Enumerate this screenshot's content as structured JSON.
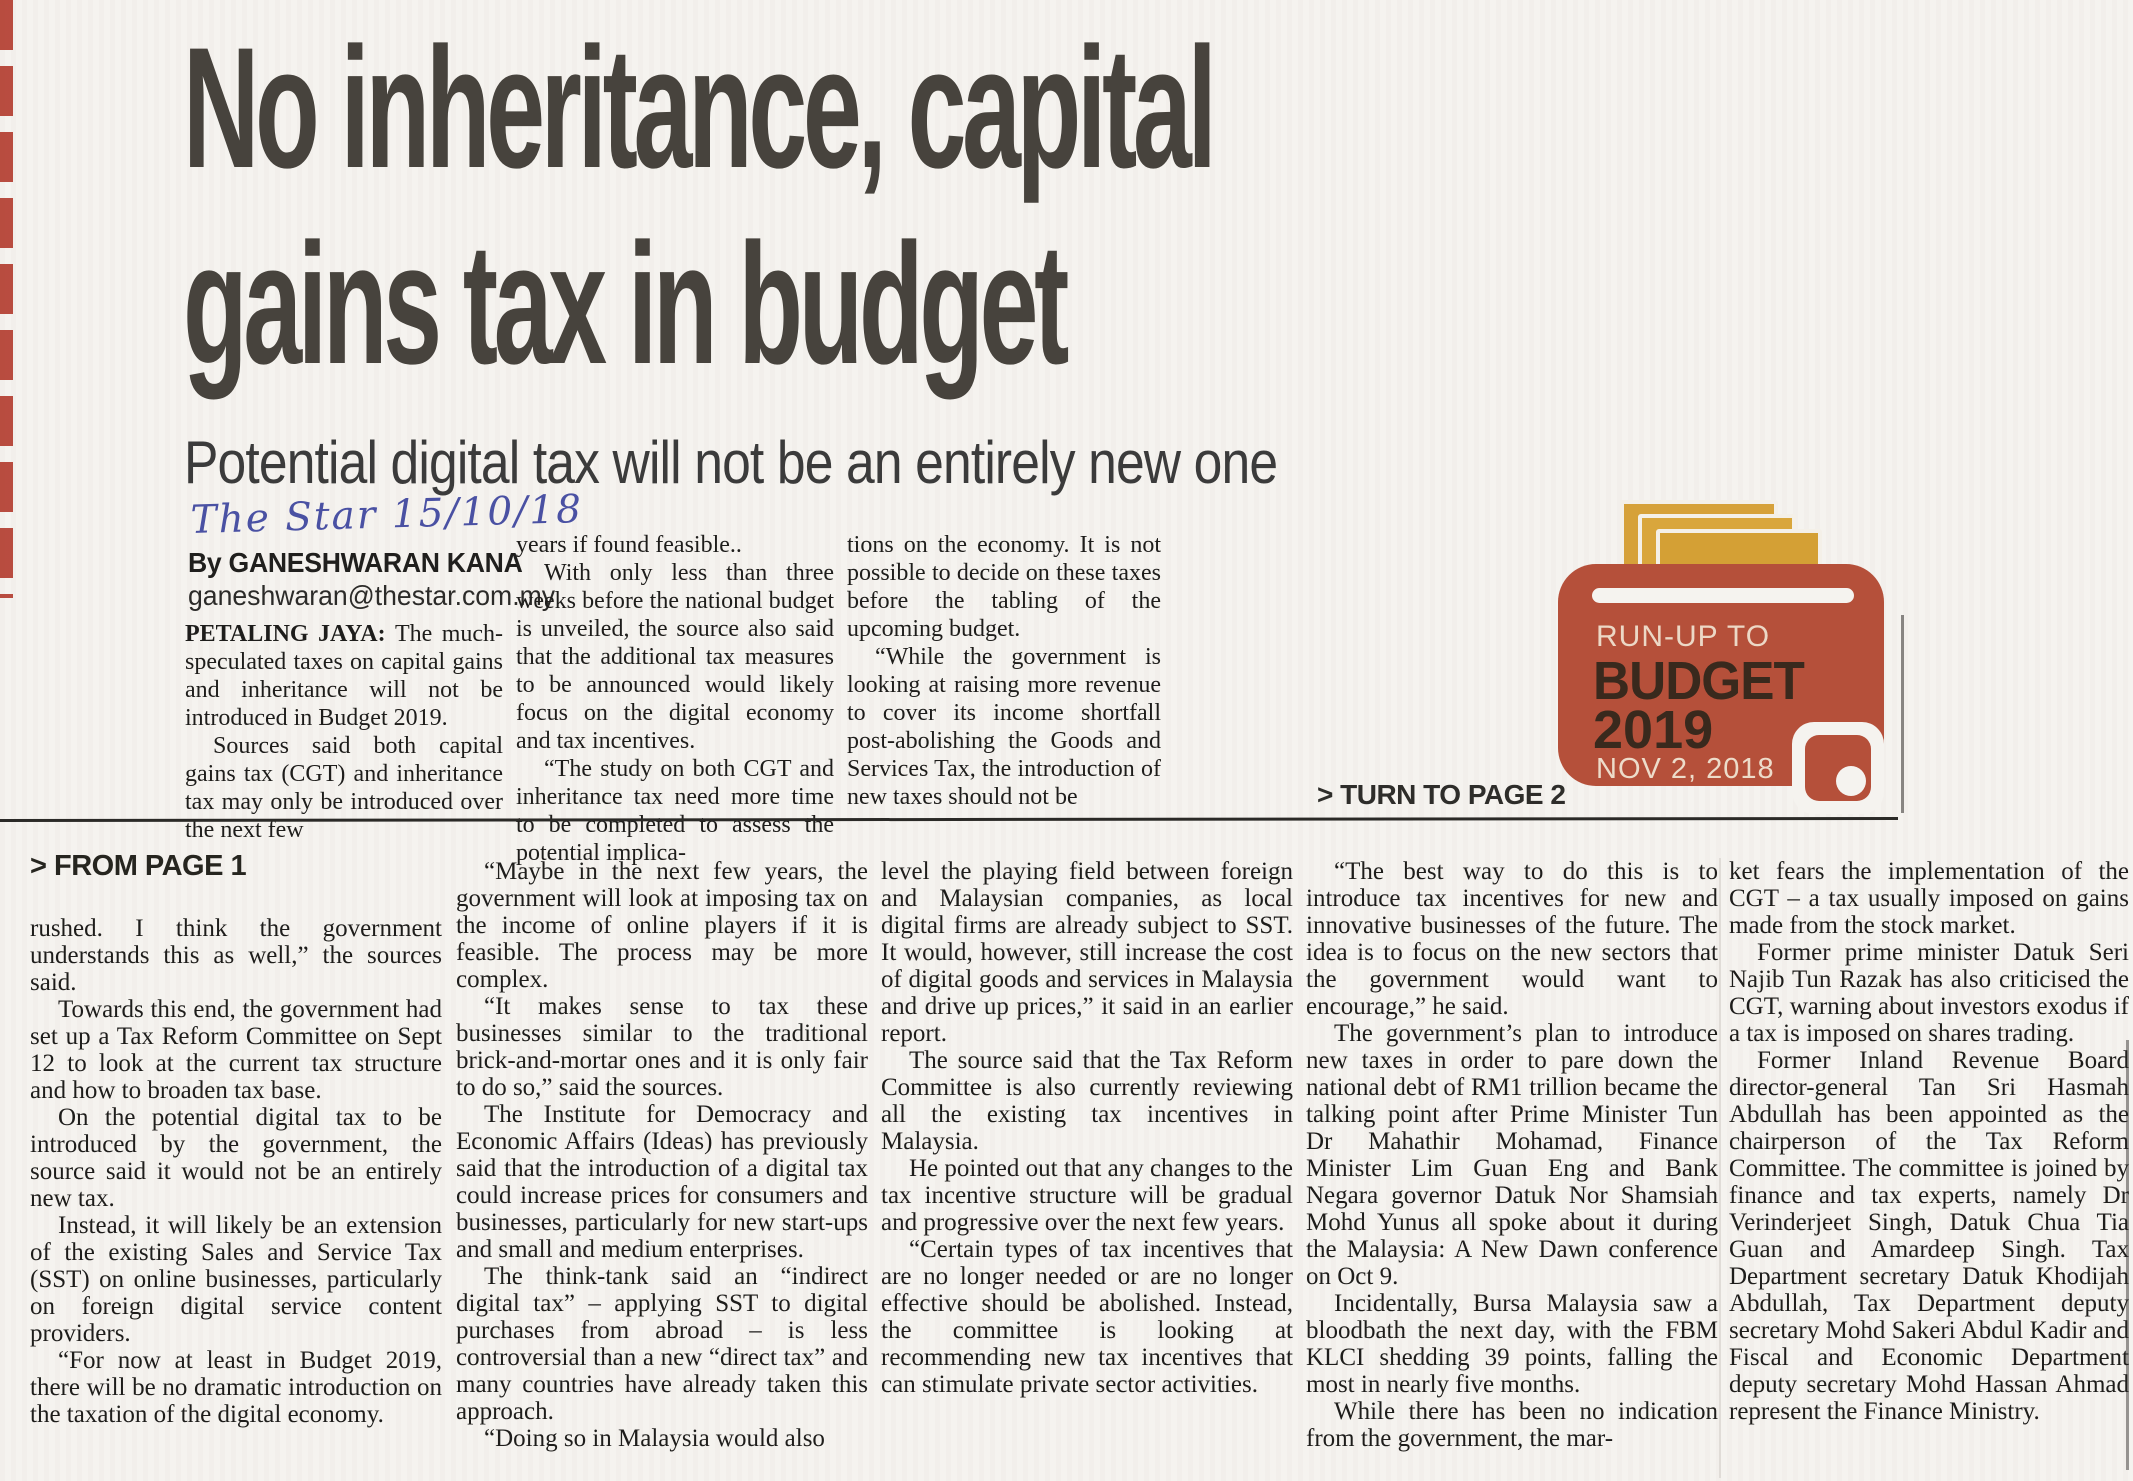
{
  "page": {
    "handwritten_note": "The Star 15/10/18",
    "headline_line1": "No inheritance, capital",
    "headline_line2": "gains tax in budget",
    "subheadline": "Potential digital tax will not be an entirely new one",
    "byline": "By GANESHWARAN KANA",
    "byline_email": "ganeshwaran@thestar.com.my",
    "turn_to_page": "> TURN TO PAGE 2",
    "from_page": "> FROM PAGE 1"
  },
  "colors": {
    "badge_red": "#b5503a",
    "badge_gold": "#d6a139",
    "badge_text_dark": "#39291d",
    "badge_text_light": "#ecd8c6",
    "handwriting_ink": "#4a51a3",
    "edge_mark_red": "#b23a2c",
    "headline_ink": "#47433d",
    "body_ink": "#1e1d1b"
  },
  "budget_badge": {
    "runup": "RUN-UP TO",
    "title": "BUDGET",
    "year": "2019",
    "date": "NOV 2, 2018"
  },
  "top_section": {
    "column1": [
      {
        "lead": "PETALING JAYA:",
        "text": "The much-speculated taxes on capital gains and inheritance will not be introduced in Budget 2019.",
        "indent": false
      },
      {
        "text": "Sources said both capital gains tax (CGT) and inheritance tax may only be introduced over the next few",
        "indent": true
      }
    ],
    "column2": [
      {
        "text": "years if found feasible..",
        "indent": false
      },
      {
        "text": "With only less than three weeks before the national budget is unveiled, the source also said that the additional tax measures to be announced would likely focus on the digital economy and tax incentives.",
        "indent": true
      },
      {
        "text": "“The study on both CGT and inheritance tax need more time to be completed to assess the potential implica-",
        "indent": true
      }
    ],
    "column3": [
      {
        "text": "tions on the economy. It is not possible to decide on these taxes before the tabling of the upcoming budget.",
        "indent": false
      },
      {
        "text": "“While the government is looking at raising more revenue to cover its income shortfall post-abolishing the Goods and Services Tax, the introduction of new taxes should not be",
        "indent": true
      }
    ]
  },
  "bottom_section": {
    "column1": [
      {
        "text": "rushed. I think the government understands this as well,” the sources said.",
        "indent": false
      },
      {
        "text": "Towards this end, the government had set up a Tax Reform Committee on Sept 12 to look at the current tax structure and how to broaden tax base.",
        "indent": true
      },
      {
        "text": "On the potential digital tax to be introduced by the government, the source said it would not be an entirely new tax.",
        "indent": true
      },
      {
        "text": "Instead, it will likely be an extension of the existing Sales and Service Tax (SST) on online businesses, particularly on foreign digital service content providers.",
        "indent": true
      },
      {
        "text": "“For now at least in Budget 2019, there will be no dramatic introduction on the taxation of the digital economy.",
        "indent": true
      }
    ],
    "column2": [
      {
        "text": "“Maybe in the next few years, the government will look at imposing tax on the income of online players if it is feasible. The process may be more complex.",
        "indent": true
      },
      {
        "text": "“It makes sense to tax these businesses similar to the traditional brick-and-mortar ones and it is only fair to do so,” said the sources.",
        "indent": true
      },
      {
        "text": "The Institute for Democracy and Economic Affairs (Ideas) has previously said that the introduction of a digital tax could increase prices for consumers and businesses, particularly for new start-ups and small and medium enterprises.",
        "indent": true
      },
      {
        "text": "The think-tank said an “indirect digital tax” – applying SST to digital purchases from abroad – is less controversial than a new “direct tax” and many countries have already taken this approach.",
        "indent": true
      },
      {
        "text": "“Doing so in Malaysia would also",
        "indent": true
      }
    ],
    "column3": [
      {
        "text": "level the playing field between foreign and Malaysian companies, as local digital firms are already subject to SST. It would, however, still increase the cost of digital goods and services in Malaysia and drive up prices,” it said in an earlier report.",
        "indent": false
      },
      {
        "text": "The source said that the Tax Reform Committee is also currently reviewing all the existing tax incentives in Malaysia.",
        "indent": true
      },
      {
        "text": "He pointed out that any changes to the tax incentive structure will be gradual and progressive over the next few years.",
        "indent": true
      },
      {
        "text": "“Certain types of tax incentives that are no longer needed or are no longer effective should be abolished. Instead, the committee is looking at recommending new tax incentives that can stimulate private sector activities.",
        "indent": true
      }
    ],
    "column4": [
      {
        "text": "“The best way to do this is to introduce tax incentives for new and innovative businesses of the future. The idea is to focus on the new sectors that the government would want to encourage,” he said.",
        "indent": true
      },
      {
        "text": "The government’s plan to introduce new taxes in order to pare down the national debt of RM1 trillion became the talking point after Prime Minister Tun Dr Mahathir Mohamad, Finance Minister Lim Guan Eng and Bank Negara governor Datuk Nor Shamsiah Mohd Yunus all spoke about it during the Malaysia: A New Dawn conference on Oct 9.",
        "indent": true
      },
      {
        "text": "Incidentally, Bursa Malaysia saw a bloodbath the next day, with the FBM KLCI shedding 39 points, falling the most in nearly five months.",
        "indent": true
      },
      {
        "text": "While there has been no indication from the government, the mar-",
        "indent": true
      }
    ],
    "column5": [
      {
        "text": "ket fears the implementation of the CGT – a tax usually imposed on gains made from the stock market.",
        "indent": false
      },
      {
        "text": "Former prime minister Datuk Seri Najib Tun Razak has also criticised the CGT, warning about investors exodus if a tax is imposed on shares trading.",
        "indent": true
      },
      {
        "text": "Former Inland Revenue Board director-general Tan Sri Hasmah Abdullah has been appointed as the chairperson of the Tax Reform Committee. The committee is joined by finance and tax experts, namely Dr Verinderjeet Singh, Datuk Chua Tia Guan and Amardeep Singh. Tax Department secretary Datuk Khodijah Abdullah, Tax Department deputy secretary Mohd Sakeri Abdul Kadir and Fiscal and Economic Department deputy secretary Mohd Hassan Ahmad represent the Finance Ministry.",
        "indent": true
      }
    ]
  }
}
